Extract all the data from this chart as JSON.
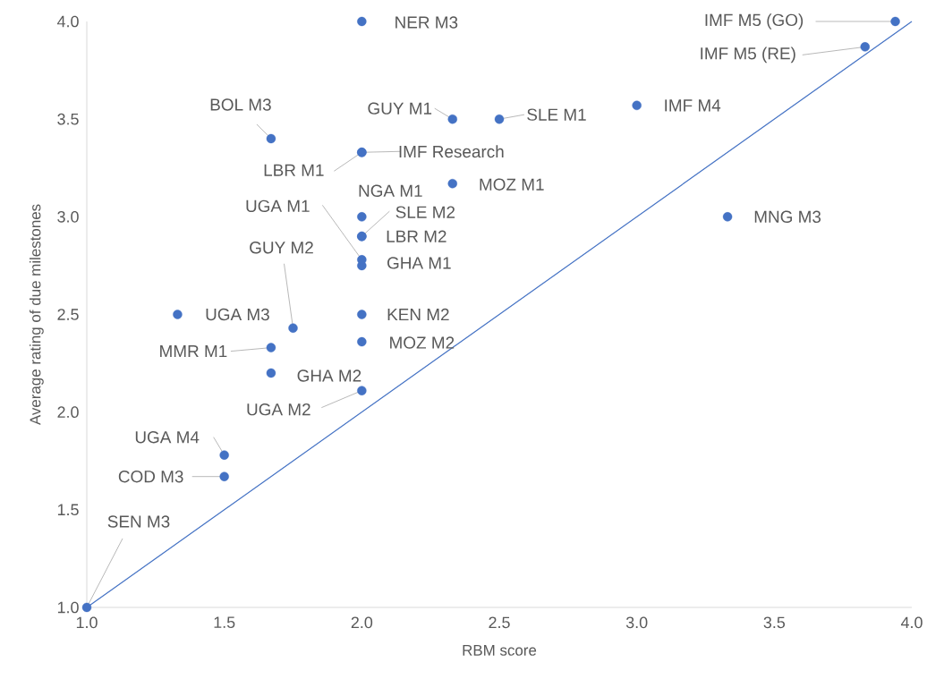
{
  "chart_data": {
    "type": "scatter",
    "xlabel": "RBM score",
    "ylabel": "Average rating of due milestones",
    "xlim": [
      1.0,
      4.0
    ],
    "ylim": [
      1.0,
      4.0
    ],
    "xticks": [
      {
        "value": 1.0,
        "label": "1.0"
      },
      {
        "value": 1.5,
        "label": "1.5"
      },
      {
        "value": 2.0,
        "label": "2.0"
      },
      {
        "value": 2.5,
        "label": "2.5"
      },
      {
        "value": 3.0,
        "label": "3.0"
      },
      {
        "value": 3.5,
        "label": "3.5"
      },
      {
        "value": 4.0,
        "label": "4.0"
      }
    ],
    "yticks": [
      {
        "value": 1.0,
        "label": "1.0"
      },
      {
        "value": 1.5,
        "label": "1.5"
      },
      {
        "value": 2.0,
        "label": "2.0"
      },
      {
        "value": 2.5,
        "label": "2.5"
      },
      {
        "value": 3.0,
        "label": "3.0"
      },
      {
        "value": 3.5,
        "label": "3.5"
      },
      {
        "value": 4.0,
        "label": "4.0"
      }
    ],
    "grid": false,
    "marker": "circle",
    "series": [
      {
        "color": "#4472c4",
        "x": [
          1.0,
          1.5,
          1.5,
          1.33,
          1.67,
          1.67,
          1.75,
          1.67,
          2.0,
          2.0,
          2.0,
          2.0,
          2.0,
          2.0,
          2.0,
          2.0,
          2.0,
          2.0,
          2.0,
          2.33,
          2.5,
          2.33,
          3.0,
          3.33,
          3.83,
          3.94
        ],
        "values": [
          1.0,
          1.67,
          1.78,
          2.5,
          2.33,
          2.2,
          2.43,
          3.4,
          2.11,
          2.36,
          2.5,
          2.75,
          2.78,
          2.9,
          2.9,
          3.0,
          3.33,
          3.33,
          4.0,
          3.5,
          3.5,
          3.17,
          3.57,
          3.0,
          3.87,
          4.0
        ]
      },
      {
        "type": "line",
        "color": "#4472c4",
        "marker": "none",
        "x": [
          1.0,
          4.0
        ],
        "values": [
          1.0,
          4.0
        ]
      }
    ],
    "annotations": [
      {
        "text": "SEN M3",
        "x": 1.0,
        "y": 1.0
      },
      {
        "text": "COD M3",
        "x": 1.5,
        "y": 1.67
      },
      {
        "text": "UGA M4",
        "x": 1.5,
        "y": 1.78
      },
      {
        "text": "UGA M3",
        "x": 1.33,
        "y": 2.5
      },
      {
        "text": "MMR M1",
        "x": 1.67,
        "y": 2.33
      },
      {
        "text": "GHA M2",
        "x": 1.67,
        "y": 2.2
      },
      {
        "text": "GUY M2",
        "x": 1.75,
        "y": 2.43
      },
      {
        "text": "BOL M3",
        "x": 1.67,
        "y": 3.4
      },
      {
        "text": "UGA M2",
        "x": 2.0,
        "y": 2.11
      },
      {
        "text": "MOZ M2",
        "x": 2.0,
        "y": 2.36
      },
      {
        "text": "KEN M2",
        "x": 2.0,
        "y": 2.5
      },
      {
        "text": "GHA M1",
        "x": 2.0,
        "y": 2.75
      },
      {
        "text": "UGA M1",
        "x": 2.0,
        "y": 2.78
      },
      {
        "text": "LBR M2",
        "x": 2.0,
        "y": 2.9
      },
      {
        "text": "SLE M2",
        "x": 2.0,
        "y": 2.9
      },
      {
        "text": "NGA M1",
        "x": 2.0,
        "y": 3.0
      },
      {
        "text": "LBR M1",
        "x": 2.0,
        "y": 3.33
      },
      {
        "text": "IMF Research",
        "x": 2.0,
        "y": 3.33
      },
      {
        "text": "NER M3",
        "x": 2.0,
        "y": 4.0
      },
      {
        "text": "GUY M1",
        "x": 2.33,
        "y": 3.5
      },
      {
        "text": "SLE M1",
        "x": 2.5,
        "y": 3.5
      },
      {
        "text": "MOZ M1",
        "x": 2.33,
        "y": 3.17
      },
      {
        "text": "IMF M4",
        "x": 3.0,
        "y": 3.57
      },
      {
        "text": "MNG M3",
        "x": 3.33,
        "y": 3.0
      },
      {
        "text": "IMF M5 (RE)",
        "x": 3.83,
        "y": 3.87
      },
      {
        "text": "IMF M5 (GO)",
        "x": 3.94,
        "y": 4.0
      }
    ]
  }
}
